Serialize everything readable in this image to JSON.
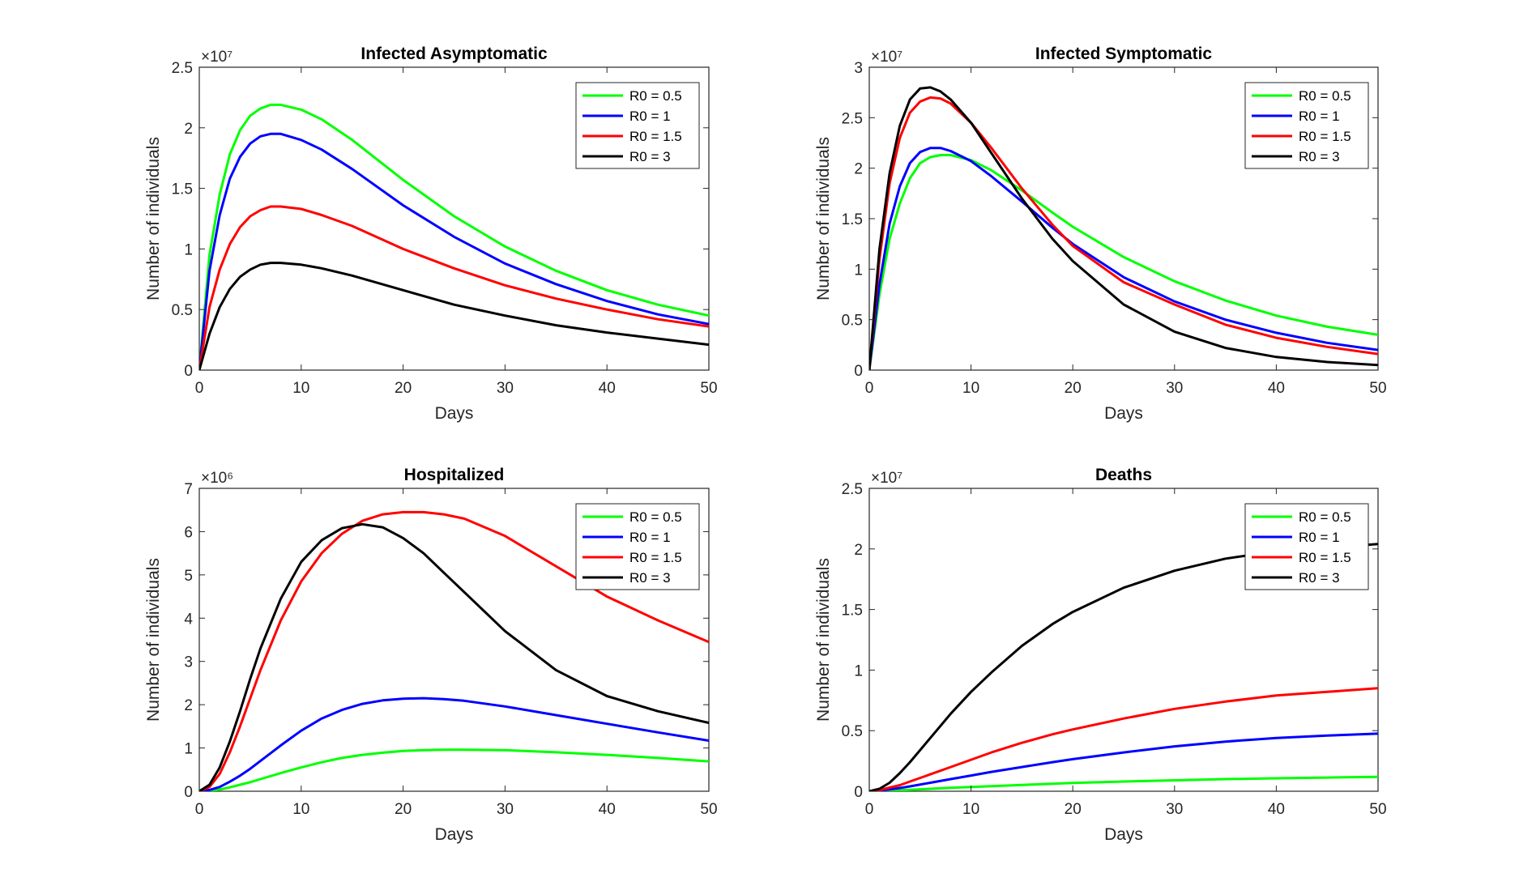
{
  "figure": {
    "background": "#ffffff",
    "axis_color": "#262626"
  },
  "chart_data": [
    {
      "type": "line",
      "title": "Infected Asymptomatic",
      "xlabel": "Days",
      "ylabel": "Number of individuals",
      "exponent_label": "×10⁷",
      "xlim": [
        0,
        50
      ],
      "ylim": [
        0,
        2.5
      ],
      "xticks": [
        0,
        10,
        20,
        30,
        40,
        50
      ],
      "xtick_labels": [
        "0",
        "10",
        "20",
        "30",
        "40",
        "50"
      ],
      "yticks": [
        0,
        0.5,
        1,
        1.5,
        2,
        2.5
      ],
      "ytick_labels": [
        "0",
        "0.5",
        "1",
        "1.5",
        "2",
        "2.5"
      ],
      "legend_position": "top-right",
      "grid": false,
      "x": [
        0,
        1,
        2,
        3,
        4,
        5,
        6,
        7,
        8,
        10,
        12,
        15,
        20,
        25,
        30,
        35,
        40,
        45,
        50
      ],
      "series": [
        {
          "name": "R0 = 0.5",
          "color": "#00ff00",
          "values": [
            0,
            0.95,
            1.45,
            1.78,
            1.98,
            2.1,
            2.16,
            2.19,
            2.19,
            2.15,
            2.07,
            1.9,
            1.57,
            1.27,
            1.02,
            0.82,
            0.66,
            0.54,
            0.45
          ]
        },
        {
          "name": "R0 = 1",
          "color": "#0000ff",
          "values": [
            0,
            0.82,
            1.28,
            1.58,
            1.76,
            1.87,
            1.93,
            1.95,
            1.95,
            1.9,
            1.82,
            1.66,
            1.36,
            1.1,
            0.88,
            0.71,
            0.57,
            0.46,
            0.38
          ]
        },
        {
          "name": "R0 = 1.5",
          "color": "#ff0000",
          "values": [
            0,
            0.52,
            0.83,
            1.04,
            1.18,
            1.27,
            1.32,
            1.35,
            1.35,
            1.33,
            1.28,
            1.19,
            1.0,
            0.84,
            0.7,
            0.59,
            0.5,
            0.42,
            0.36
          ]
        },
        {
          "name": "R0 = 3",
          "color": "#000000",
          "values": [
            0,
            0.3,
            0.52,
            0.67,
            0.77,
            0.83,
            0.87,
            0.885,
            0.885,
            0.87,
            0.84,
            0.78,
            0.66,
            0.54,
            0.45,
            0.37,
            0.31,
            0.26,
            0.21
          ]
        }
      ]
    },
    {
      "type": "line",
      "title": "Infected Symptomatic",
      "xlabel": "Days",
      "ylabel": "Number of individuals",
      "exponent_label": "×10⁷",
      "xlim": [
        0,
        50
      ],
      "ylim": [
        0,
        3
      ],
      "xticks": [
        0,
        10,
        20,
        30,
        40,
        50
      ],
      "xtick_labels": [
        "0",
        "10",
        "20",
        "30",
        "40",
        "50"
      ],
      "yticks": [
        0,
        0.5,
        1,
        1.5,
        2,
        2.5,
        3
      ],
      "ytick_labels": [
        "0",
        "0.5",
        "1",
        "1.5",
        "2",
        "2.5",
        "3"
      ],
      "legend_position": "top-right",
      "grid": false,
      "x": [
        0,
        1,
        2,
        3,
        4,
        5,
        6,
        7,
        8,
        10,
        12,
        15,
        18,
        20,
        25,
        30,
        35,
        40,
        45,
        50
      ],
      "series": [
        {
          "name": "R0 = 0.5",
          "color": "#00ff00",
          "values": [
            0,
            0.75,
            1.3,
            1.65,
            1.9,
            2.05,
            2.11,
            2.13,
            2.13,
            2.08,
            1.98,
            1.78,
            1.56,
            1.42,
            1.12,
            0.88,
            0.69,
            0.54,
            0.43,
            0.35
          ]
        },
        {
          "name": "R0 = 1",
          "color": "#0000ff",
          "values": [
            0,
            0.85,
            1.45,
            1.82,
            2.05,
            2.16,
            2.2,
            2.2,
            2.17,
            2.07,
            1.92,
            1.67,
            1.41,
            1.25,
            0.92,
            0.68,
            0.5,
            0.37,
            0.27,
            0.2
          ]
        },
        {
          "name": "R0 = 1.5",
          "color": "#ff0000",
          "values": [
            0,
            1.1,
            1.85,
            2.3,
            2.55,
            2.66,
            2.7,
            2.69,
            2.64,
            2.45,
            2.2,
            1.8,
            1.44,
            1.23,
            0.87,
            0.65,
            0.45,
            0.32,
            0.23,
            0.16
          ]
        },
        {
          "name": "R0 = 3",
          "color": "#000000",
          "values": [
            0,
            1.2,
            1.95,
            2.42,
            2.68,
            2.79,
            2.8,
            2.76,
            2.68,
            2.45,
            2.15,
            1.7,
            1.3,
            1.08,
            0.65,
            0.38,
            0.22,
            0.13,
            0.08,
            0.05
          ]
        }
      ]
    },
    {
      "type": "line",
      "title": "Hospitalized",
      "xlabel": "Days",
      "ylabel": "Number of individuals",
      "exponent_label": "×10⁶",
      "xlim": [
        0,
        50
      ],
      "ylim": [
        0,
        7
      ],
      "xticks": [
        0,
        10,
        20,
        30,
        40,
        50
      ],
      "xtick_labels": [
        "0",
        "10",
        "20",
        "30",
        "40",
        "50"
      ],
      "yticks": [
        0,
        1,
        2,
        3,
        4,
        5,
        6,
        7
      ],
      "ytick_labels": [
        "0",
        "1",
        "2",
        "3",
        "4",
        "5",
        "6",
        "7"
      ],
      "legend_position": "top-right",
      "grid": false,
      "x": [
        0,
        1,
        2,
        3,
        4,
        5,
        6,
        8,
        10,
        12,
        14,
        16,
        18,
        20,
        22,
        24,
        26,
        30,
        35,
        40,
        45,
        50
      ],
      "series": [
        {
          "name": "R0 = 0.5",
          "color": "#00ff00",
          "values": [
            0,
            0.01,
            0.04,
            0.09,
            0.15,
            0.21,
            0.28,
            0.42,
            0.55,
            0.67,
            0.77,
            0.84,
            0.89,
            0.93,
            0.95,
            0.96,
            0.96,
            0.95,
            0.9,
            0.84,
            0.77,
            0.69
          ]
        },
        {
          "name": "R0 = 1",
          "color": "#0000ff",
          "values": [
            0,
            0.03,
            0.1,
            0.22,
            0.36,
            0.52,
            0.7,
            1.06,
            1.4,
            1.68,
            1.88,
            2.02,
            2.1,
            2.14,
            2.15,
            2.13,
            2.09,
            1.96,
            1.76,
            1.56,
            1.36,
            1.17
          ]
        },
        {
          "name": "R0 = 1.5",
          "color": "#ff0000",
          "values": [
            0,
            0.1,
            0.4,
            0.9,
            1.5,
            2.15,
            2.8,
            3.95,
            4.85,
            5.5,
            5.95,
            6.25,
            6.4,
            6.45,
            6.45,
            6.4,
            6.3,
            5.9,
            5.2,
            4.5,
            3.95,
            3.45
          ]
        },
        {
          "name": "R0 = 3",
          "color": "#000000",
          "values": [
            0,
            0.15,
            0.55,
            1.15,
            1.85,
            2.6,
            3.3,
            4.45,
            5.3,
            5.8,
            6.08,
            6.17,
            6.1,
            5.85,
            5.5,
            5.05,
            4.6,
            3.7,
            2.8,
            2.2,
            1.85,
            1.58
          ]
        }
      ]
    },
    {
      "type": "line",
      "title": "Deaths",
      "xlabel": "Days",
      "ylabel": "Number of individuals",
      "exponent_label": "×10⁷",
      "xlim": [
        0,
        50
      ],
      "ylim": [
        0,
        2.5
      ],
      "xticks": [
        0,
        10,
        20,
        30,
        40,
        50
      ],
      "xtick_labels": [
        "0",
        "10",
        "20",
        "30",
        "40",
        "50"
      ],
      "yticks": [
        0,
        0.5,
        1,
        1.5,
        2,
        2.5
      ],
      "ytick_labels": [
        "0",
        "0.5",
        "1",
        "1.5",
        "2",
        "2.5"
      ],
      "legend_position": "top-right",
      "grid": false,
      "x": [
        0,
        1,
        2,
        3,
        4,
        6,
        8,
        10,
        12,
        15,
        18,
        20,
        25,
        30,
        35,
        40,
        45,
        50
      ],
      "series": [
        {
          "name": "R0 = 0.5",
          "color": "#00ff00",
          "values": [
            0,
            0.002,
            0.005,
            0.008,
            0.012,
            0.02,
            0.028,
            0.035,
            0.042,
            0.052,
            0.062,
            0.068,
            0.08,
            0.09,
            0.1,
            0.107,
            0.113,
            0.118
          ]
        },
        {
          "name": "R0 = 1",
          "color": "#0000ff",
          "values": [
            0,
            0.005,
            0.015,
            0.027,
            0.04,
            0.07,
            0.1,
            0.13,
            0.16,
            0.2,
            0.24,
            0.265,
            0.32,
            0.37,
            0.41,
            0.44,
            0.46,
            0.475
          ]
        },
        {
          "name": "R0 = 1.5",
          "color": "#ff0000",
          "values": [
            0,
            0.01,
            0.03,
            0.05,
            0.08,
            0.14,
            0.2,
            0.26,
            0.32,
            0.4,
            0.47,
            0.51,
            0.6,
            0.68,
            0.74,
            0.79,
            0.82,
            0.85
          ]
        },
        {
          "name": "R0 = 3",
          "color": "#000000",
          "values": [
            0,
            0.02,
            0.07,
            0.15,
            0.24,
            0.44,
            0.64,
            0.82,
            0.98,
            1.2,
            1.38,
            1.48,
            1.68,
            1.82,
            1.92,
            1.98,
            2.01,
            2.04
          ]
        }
      ]
    }
  ]
}
